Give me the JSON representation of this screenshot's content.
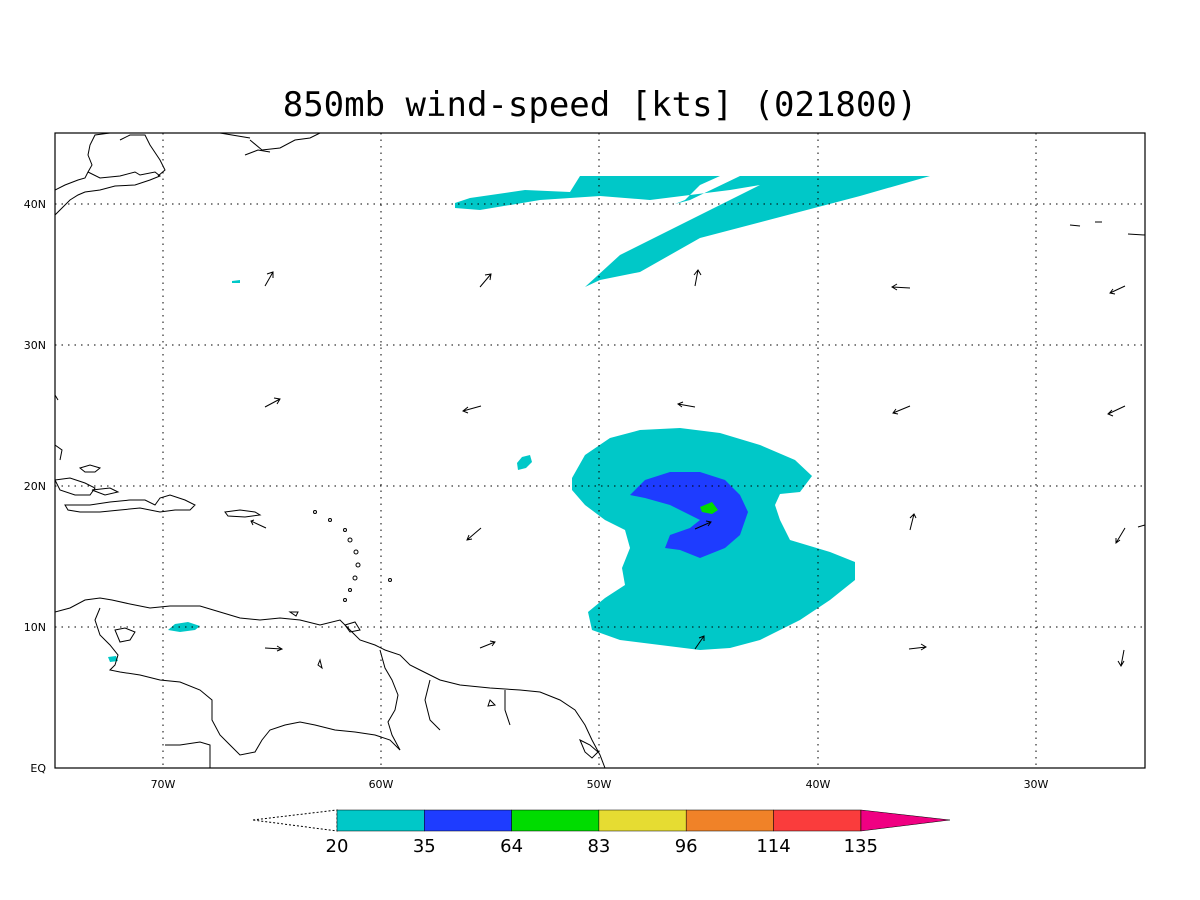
{
  "title": "850mb wind-speed [kts] (021800)",
  "colors": {
    "c20": "#00c8c8",
    "c35": "#1e3cff",
    "c64": "#00dc00",
    "c83": "#e6dc32",
    "c96": "#f08228",
    "c114": "#fa3c3c",
    "c135": "#f00082"
  },
  "map": {
    "lon_range": [
      -75,
      -25
    ],
    "lat_range": [
      0,
      45
    ],
    "lon_ticks": [
      "70W",
      "60W",
      "50W",
      "40W",
      "30W"
    ],
    "lat_ticks": [
      "EQ",
      "10N",
      "20N",
      "30N",
      "40N"
    ]
  },
  "colorbar": {
    "labels": [
      "20",
      "35",
      "64",
      "83",
      "96",
      "114",
      "135"
    ]
  }
}
